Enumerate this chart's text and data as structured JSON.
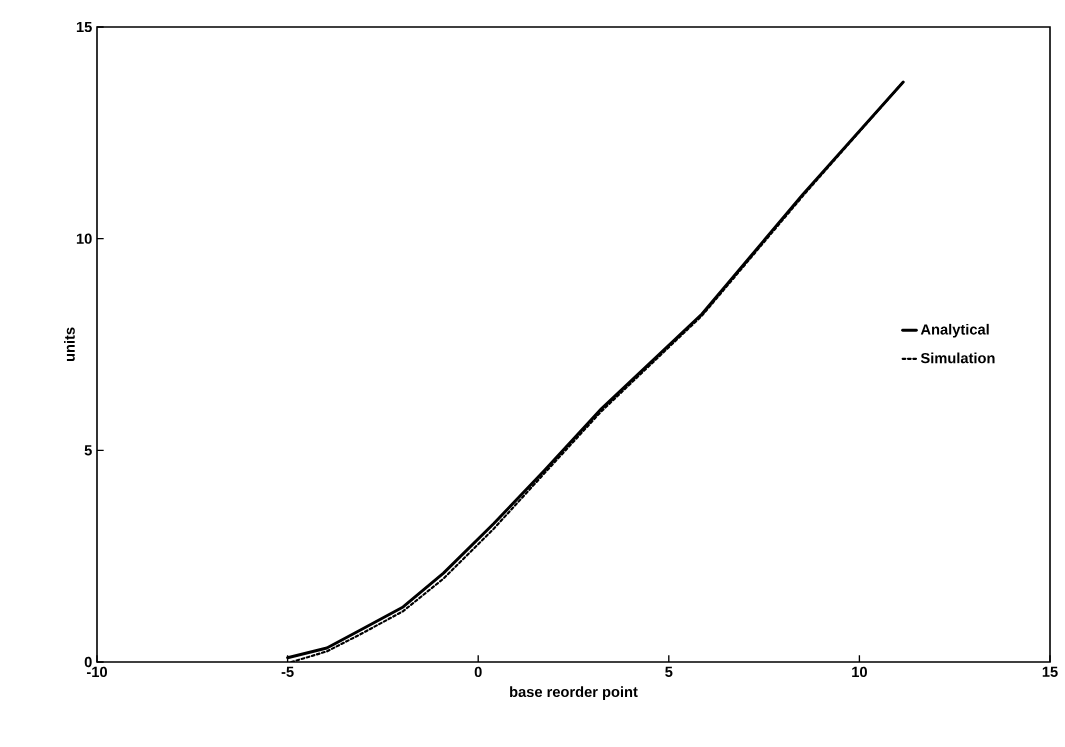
{
  "chart_data": {
    "type": "line",
    "xlabel": "base reorder point",
    "ylabel": "units",
    "xlim": [
      -10,
      15
    ],
    "ylim": [
      0,
      15
    ],
    "xticks": [
      -10,
      -5,
      0,
      5,
      10,
      15
    ],
    "yticks": [
      0,
      5,
      10,
      15
    ],
    "grid": false,
    "legend": "right",
    "marker": "none",
    "series": [
      {
        "name": "Analytical",
        "color": "#000000",
        "line_style": "solid",
        "x": [
          -5.0,
          -3.97,
          -3.1,
          -1.97,
          -0.91,
          0.41,
          1.73,
          3.23,
          5.87,
          8.51,
          11.15
        ],
        "values": [
          0.1,
          0.33,
          0.75,
          1.3,
          2.1,
          3.27,
          4.52,
          5.98,
          8.22,
          11.04,
          13.7
        ]
      },
      {
        "name": "Simulation",
        "color": "#000000",
        "line_style": "dotted",
        "x": [
          -4.9,
          -3.97,
          -3.1,
          -1.97,
          -0.91,
          0.41,
          1.73,
          3.23,
          5.87,
          8.51,
          11.1
        ],
        "values": [
          0.0,
          0.25,
          0.65,
          1.2,
          1.97,
          3.15,
          4.45,
          5.92,
          8.18,
          11.0,
          13.65
        ]
      }
    ]
  }
}
